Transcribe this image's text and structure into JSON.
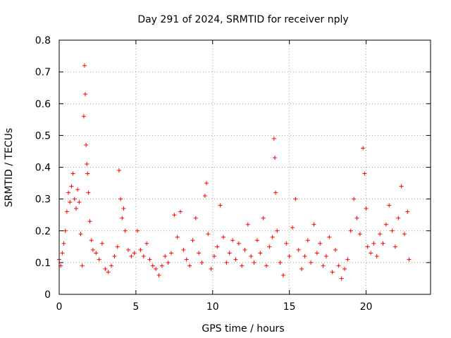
{
  "chart_data": {
    "type": "scatter",
    "marker": "plus",
    "title": "Day 291 of 2024, SRMTID for receiver nply",
    "xlabel": "GPS time / hours",
    "ylabel": "SRMTID / TECUs",
    "xlim": [
      0,
      24.2
    ],
    "ylim": [
      0,
      0.8
    ],
    "xticks": [
      0,
      5,
      10,
      15,
      20
    ],
    "yticks": [
      0,
      0.1,
      0.2,
      0.3,
      0.4,
      0.5,
      0.6,
      0.7,
      0.8
    ],
    "xtick_labels": [
      "0",
      "5",
      "10",
      "15",
      "20"
    ],
    "ytick_labels": [
      "0",
      "0.1",
      "0.2",
      "0.3",
      "0.4",
      "0.5",
      "0.6",
      "0.7",
      "0.8"
    ],
    "grid": true,
    "color": "#ff0000",
    "series": [
      {
        "name": "SRMTID",
        "points": [
          [
            0.0,
            0.11
          ],
          [
            0.1,
            0.09
          ],
          [
            0.2,
            0.13
          ],
          [
            0.3,
            0.16
          ],
          [
            0.4,
            0.2
          ],
          [
            0.5,
            0.26
          ],
          [
            0.6,
            0.32
          ],
          [
            0.7,
            0.29
          ],
          [
            0.8,
            0.34
          ],
          [
            0.9,
            0.38
          ],
          [
            1.0,
            0.3
          ],
          [
            1.1,
            0.27
          ],
          [
            1.2,
            0.33
          ],
          [
            1.3,
            0.29
          ],
          [
            1.4,
            0.19
          ],
          [
            1.5,
            0.09
          ],
          [
            1.6,
            0.56
          ],
          [
            1.65,
            0.72
          ],
          [
            1.7,
            0.63
          ],
          [
            1.75,
            0.47
          ],
          [
            1.8,
            0.41
          ],
          [
            1.85,
            0.38
          ],
          [
            1.9,
            0.32
          ],
          [
            2.0,
            0.23
          ],
          [
            2.1,
            0.17
          ],
          [
            2.2,
            0.14
          ],
          [
            2.4,
            0.13
          ],
          [
            2.6,
            0.11
          ],
          [
            2.8,
            0.16
          ],
          [
            3.0,
            0.08
          ],
          [
            3.2,
            0.07
          ],
          [
            3.4,
            0.09
          ],
          [
            3.6,
            0.12
          ],
          [
            3.8,
            0.15
          ],
          [
            3.9,
            0.39
          ],
          [
            4.0,
            0.3
          ],
          [
            4.1,
            0.24
          ],
          [
            4.2,
            0.27
          ],
          [
            4.3,
            0.2
          ],
          [
            4.5,
            0.14
          ],
          [
            4.7,
            0.12
          ],
          [
            4.9,
            0.13
          ],
          [
            5.1,
            0.2
          ],
          [
            5.3,
            0.14
          ],
          [
            5.5,
            0.12
          ],
          [
            5.7,
            0.16
          ],
          [
            5.9,
            0.11
          ],
          [
            6.1,
            0.09
          ],
          [
            6.3,
            0.08
          ],
          [
            6.5,
            0.06
          ],
          [
            6.7,
            0.09
          ],
          [
            6.9,
            0.12
          ],
          [
            7.1,
            0.1
          ],
          [
            7.3,
            0.13
          ],
          [
            7.5,
            0.25
          ],
          [
            7.7,
            0.18
          ],
          [
            7.9,
            0.26
          ],
          [
            8.1,
            0.14
          ],
          [
            8.3,
            0.11
          ],
          [
            8.5,
            0.09
          ],
          [
            8.7,
            0.17
          ],
          [
            8.9,
            0.24
          ],
          [
            9.1,
            0.13
          ],
          [
            9.3,
            0.1
          ],
          [
            9.5,
            0.31
          ],
          [
            9.6,
            0.35
          ],
          [
            9.7,
            0.19
          ],
          [
            9.9,
            0.08
          ],
          [
            10.1,
            0.12
          ],
          [
            10.3,
            0.15
          ],
          [
            10.5,
            0.28
          ],
          [
            10.7,
            0.18
          ],
          [
            10.9,
            0.1
          ],
          [
            11.1,
            0.13
          ],
          [
            11.3,
            0.17
          ],
          [
            11.5,
            0.11
          ],
          [
            11.7,
            0.16
          ],
          [
            11.9,
            0.09
          ],
          [
            12.1,
            0.14
          ],
          [
            12.3,
            0.22
          ],
          [
            12.5,
            0.12
          ],
          [
            12.7,
            0.1
          ],
          [
            12.9,
            0.17
          ],
          [
            13.1,
            0.13
          ],
          [
            13.3,
            0.24
          ],
          [
            13.5,
            0.09
          ],
          [
            13.7,
            0.15
          ],
          [
            13.9,
            0.18
          ],
          [
            14.0,
            0.49
          ],
          [
            14.05,
            0.43
          ],
          [
            14.1,
            0.32
          ],
          [
            14.2,
            0.2
          ],
          [
            14.4,
            0.1
          ],
          [
            14.6,
            0.06
          ],
          [
            14.8,
            0.16
          ],
          [
            15.0,
            0.12
          ],
          [
            15.2,
            0.21
          ],
          [
            15.4,
            0.3
          ],
          [
            15.6,
            0.14
          ],
          [
            15.8,
            0.08
          ],
          [
            16.0,
            0.12
          ],
          [
            16.2,
            0.17
          ],
          [
            16.4,
            0.1
          ],
          [
            16.6,
            0.22
          ],
          [
            16.8,
            0.13
          ],
          [
            17.0,
            0.16
          ],
          [
            17.2,
            0.09
          ],
          [
            17.4,
            0.12
          ],
          [
            17.6,
            0.18
          ],
          [
            17.8,
            0.07
          ],
          [
            18.0,
            0.14
          ],
          [
            18.2,
            0.09
          ],
          [
            18.4,
            0.05
          ],
          [
            18.6,
            0.08
          ],
          [
            18.8,
            0.11
          ],
          [
            19.0,
            0.2
          ],
          [
            19.2,
            0.3
          ],
          [
            19.4,
            0.24
          ],
          [
            19.6,
            0.19
          ],
          [
            19.8,
            0.46
          ],
          [
            19.9,
            0.38
          ],
          [
            20.0,
            0.27
          ],
          [
            20.1,
            0.15
          ],
          [
            20.3,
            0.13
          ],
          [
            20.5,
            0.16
          ],
          [
            20.7,
            0.12
          ],
          [
            20.9,
            0.19
          ],
          [
            21.1,
            0.16
          ],
          [
            21.3,
            0.22
          ],
          [
            21.5,
            0.28
          ],
          [
            21.7,
            0.2
          ],
          [
            21.9,
            0.15
          ],
          [
            22.1,
            0.24
          ],
          [
            22.3,
            0.34
          ],
          [
            22.5,
            0.19
          ],
          [
            22.7,
            0.26
          ],
          [
            22.8,
            0.11
          ]
        ]
      }
    ]
  }
}
